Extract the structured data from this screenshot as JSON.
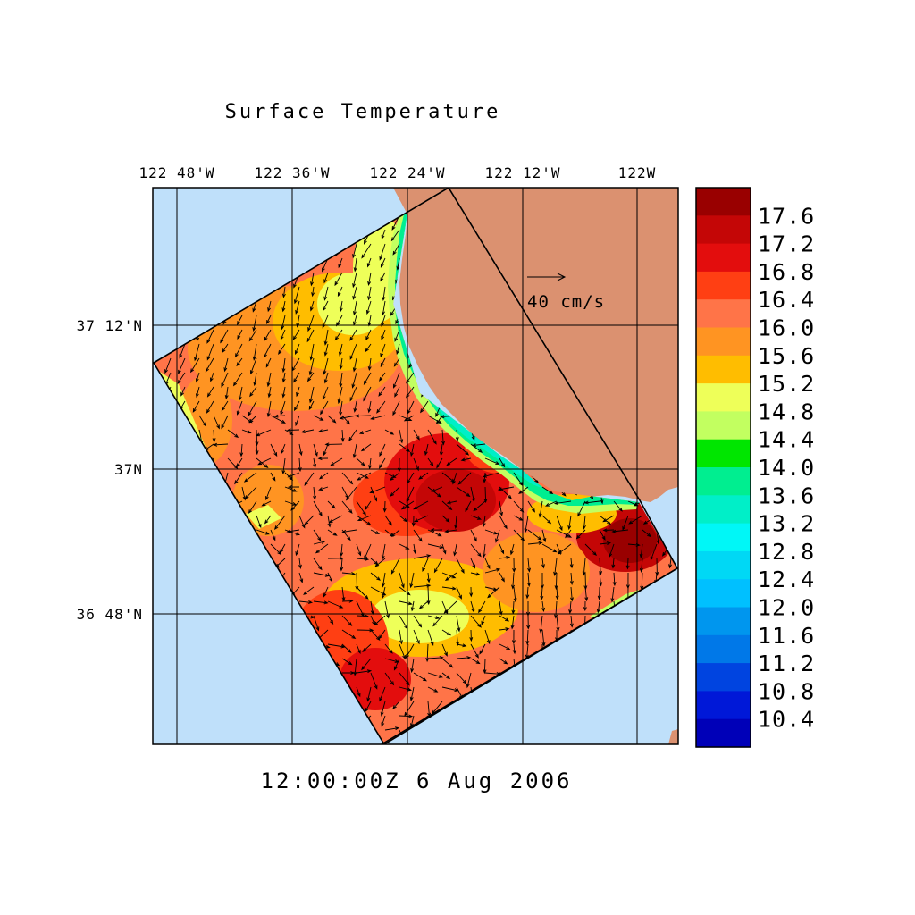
{
  "title": "Surface Temperature",
  "timestamp": "12:00:00Z   6 Aug 2006",
  "lon_labels": [
    "122 48'W",
    "122 36'W",
    "122 24'W",
    "122 12'W",
    "122W"
  ],
  "lat_labels": [
    "37 12'N",
    "37N",
    "36 48'N"
  ],
  "vector_scale_label": "40 cm/s",
  "colorbar": {
    "labels": [
      "17.6",
      "17.2",
      "16.8",
      "16.4",
      "16.0",
      "15.6",
      "15.2",
      "14.8",
      "14.4",
      "14.0",
      "13.6",
      "13.2",
      "12.8",
      "12.4",
      "12.0",
      "11.6",
      "11.2",
      "10.8",
      "10.4"
    ],
    "colors": [
      "#990000",
      "#c40606",
      "#e30d0d",
      "#ff3f13",
      "#ff7448",
      "#ff9422",
      "#ffbd00",
      "#eeff59",
      "#c2ff60",
      "#00e600",
      "#00ee90",
      "#00efc8",
      "#00f7f7",
      "#00d8f5",
      "#00c0ff",
      "#0096ee",
      "#0078e8",
      "#0044e0",
      "#0018d8",
      "#0000b8"
    ]
  },
  "colors": {
    "ocean": "#bfe0fa",
    "land": "#db9170",
    "grid": "#000000"
  }
}
